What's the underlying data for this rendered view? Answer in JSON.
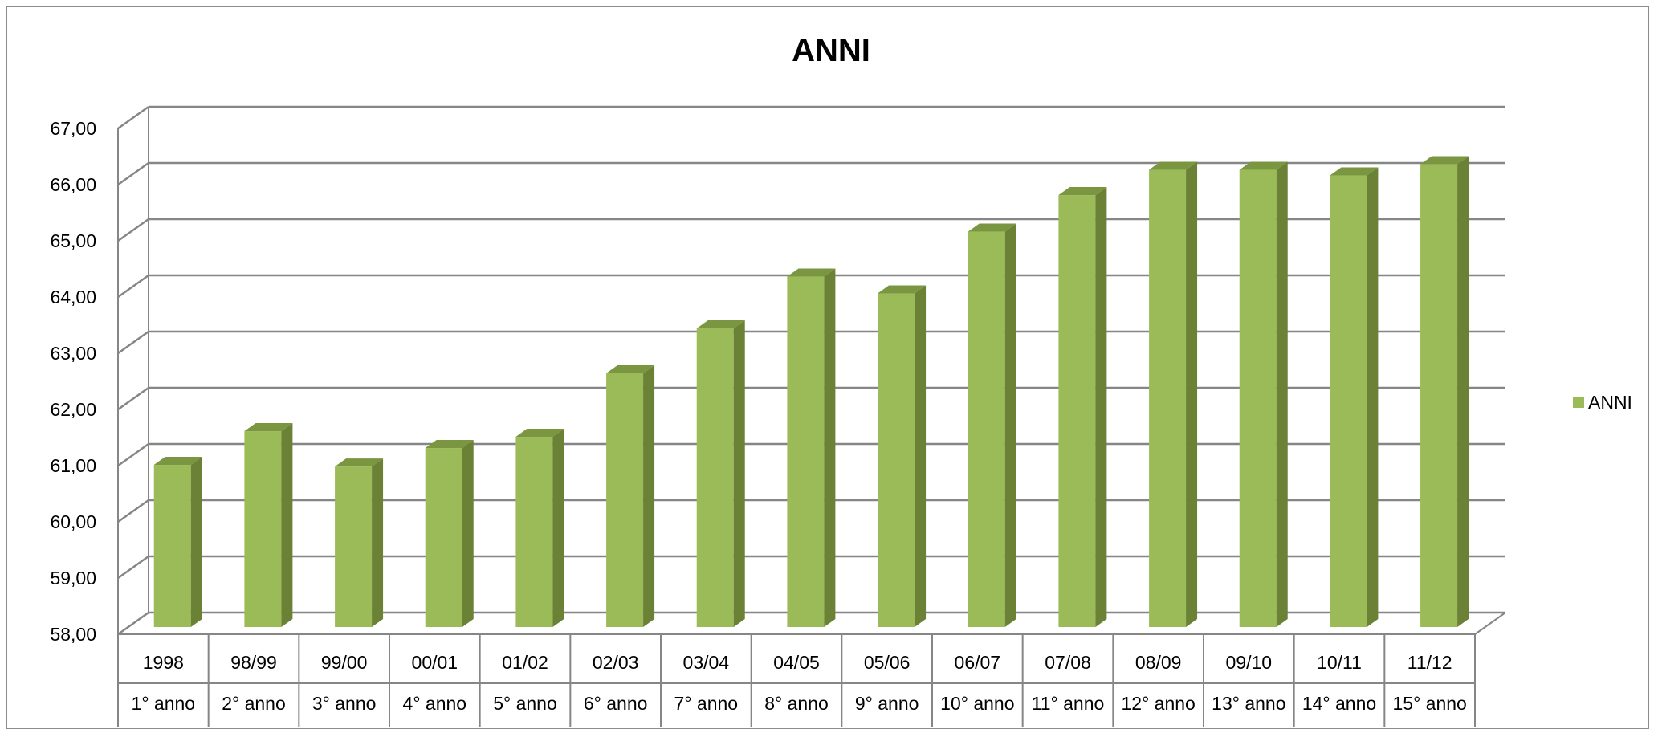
{
  "chart_data": {
    "type": "bar",
    "title": "ANNI",
    "xlabel": "",
    "ylabel": "",
    "categories": [
      "1998",
      "98/99",
      "99/00",
      "00/01",
      "01/02",
      "02/03",
      "03/04",
      "04/05",
      "05/06",
      "06/07",
      "07/08",
      "08/09",
      "09/10",
      "10/11",
      "11/12"
    ],
    "category_sublabels": [
      "1° anno",
      "2° anno",
      "3° anno",
      "4° anno",
      "5° anno",
      "6° anno",
      "7° anno",
      "8° anno",
      "9° anno",
      "10° anno",
      "11° anno",
      "12° anno",
      "13° anno",
      "14° anno",
      "15° anno"
    ],
    "series": [
      {
        "name": "ANNI",
        "values": [
          60.75,
          61.35,
          60.72,
          61.05,
          61.25,
          62.38,
          63.18,
          64.1,
          63.8,
          64.9,
          65.55,
          66.0,
          66.0,
          65.9,
          66.1
        ]
      }
    ],
    "ylim": [
      58,
      67
    ],
    "yticks": [
      "58,00",
      "59,00",
      "60,00",
      "61,00",
      "62,00",
      "63,00",
      "64,00",
      "65,00",
      "66,00",
      "67,00"
    ],
    "grid": true,
    "legend_position": "right",
    "colors": {
      "bar_front": "#9bbb59",
      "bar_side": "#6b8236",
      "bar_top": "#7a9640",
      "grid": "#868686"
    }
  }
}
